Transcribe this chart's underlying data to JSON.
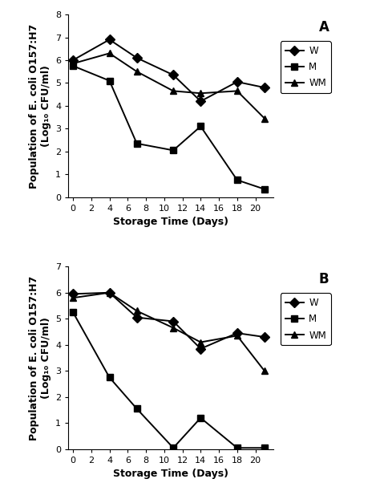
{
  "panel_A": {
    "label": "A",
    "x": [
      0,
      4,
      7,
      11,
      14,
      18,
      21
    ],
    "W": [
      6.0,
      6.9,
      6.1,
      5.35,
      4.2,
      5.05,
      4.8
    ],
    "M": [
      5.75,
      5.1,
      2.35,
      2.05,
      3.1,
      0.75,
      0.35
    ],
    "WM": [
      5.85,
      6.3,
      5.5,
      4.65,
      4.55,
      4.65,
      3.45
    ],
    "ylim": [
      0,
      8
    ],
    "yticks": [
      0,
      1,
      2,
      3,
      4,
      5,
      6,
      7,
      8
    ],
    "xlim": [
      -0.5,
      22
    ],
    "xticks": [
      0,
      2,
      4,
      6,
      8,
      10,
      12,
      14,
      16,
      18,
      20
    ]
  },
  "panel_B": {
    "label": "B",
    "x": [
      0,
      4,
      7,
      11,
      14,
      18,
      21
    ],
    "W": [
      5.95,
      6.0,
      5.05,
      4.9,
      3.85,
      4.45,
      4.3
    ],
    "M": [
      5.25,
      2.75,
      1.55,
      0.05,
      1.2,
      0.05,
      0.05
    ],
    "WM": [
      5.8,
      6.0,
      5.3,
      4.65,
      4.1,
      4.35,
      3.0
    ],
    "ylim": [
      0,
      7
    ],
    "yticks": [
      0,
      1,
      2,
      3,
      4,
      5,
      6,
      7
    ],
    "xlim": [
      -0.5,
      22
    ],
    "xticks": [
      0,
      2,
      4,
      6,
      8,
      10,
      12,
      14,
      16,
      18,
      20
    ]
  },
  "ylabel_top": "Population of E. coli O157:H7",
  "ylabel_bottom": "(Log₁₀ CFU/ml)",
  "xlabel": "Storage Time (Days)",
  "line_color": "#000000",
  "marker_W": "D",
  "marker_M": "s",
  "marker_WM": "^",
  "markersize": 6,
  "linewidth": 1.4,
  "legend_fontsize": 8.5,
  "axis_label_fontsize": 9,
  "tick_fontsize": 8,
  "panel_label_fontsize": 12
}
